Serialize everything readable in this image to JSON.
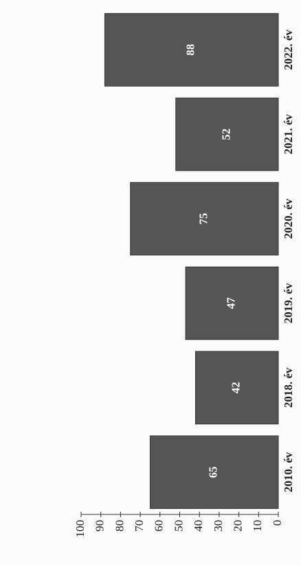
{
  "chart_data": {
    "type": "bar",
    "categories": [
      "2010. év",
      "2018. év",
      "2019. év",
      "2020. év",
      "2021. év",
      "2022. év"
    ],
    "values": [
      65,
      42,
      47,
      75,
      52,
      88
    ],
    "color": "#555555",
    "ylim": [
      0,
      100
    ],
    "yticks": [
      0,
      10,
      20,
      30,
      40,
      50,
      60,
      70,
      80,
      90,
      100
    ],
    "grid": false
  }
}
